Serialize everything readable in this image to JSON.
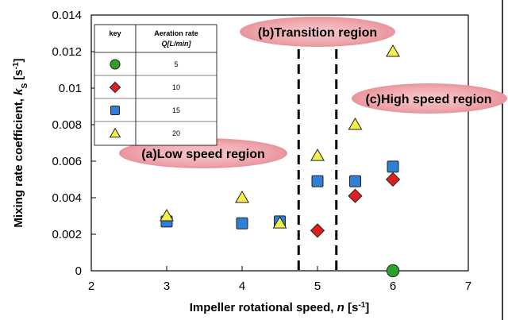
{
  "chart_data": {
    "type": "scatter",
    "xlabel": "Impeller rotational speed, n [s-1]",
    "ylabel": "Mixing rate coefficient, kS [s-1]",
    "xlim": [
      2,
      7
    ],
    "ylim": [
      0,
      0.014
    ],
    "x_ticks": [
      "2",
      "3",
      "4",
      "5",
      "6",
      "7"
    ],
    "y_ticks": [
      "0",
      "0.002",
      "0.004",
      "0.006",
      "0.008",
      "0.01",
      "0.012",
      "0.014"
    ],
    "grid": false,
    "legend": {
      "placement": "top-left",
      "header_key": "key",
      "header_title_line1": "Aeration rate",
      "header_title_line2": "Q[L/min]"
    },
    "series": [
      {
        "name": "5",
        "marker": "circle",
        "color": "#2ca02c",
        "x": [
          6
        ],
        "y": [
          0
        ]
      },
      {
        "name": "10",
        "marker": "diamond",
        "color": "#e02020",
        "x": [
          5,
          5.5,
          6
        ],
        "y": [
          0.0022,
          0.0041,
          0.005
        ]
      },
      {
        "name": "15",
        "marker": "square",
        "color": "#2f7fd6",
        "x": [
          3,
          4,
          4.5,
          5,
          5.5,
          6
        ],
        "y": [
          0.0027,
          0.0026,
          0.0027,
          0.0049,
          0.0049,
          0.0057
        ]
      },
      {
        "name": "20",
        "marker": "triangle",
        "color": "#f4f04a",
        "x": [
          3,
          4,
          4.5,
          5,
          5.5,
          6
        ],
        "y": [
          0.003,
          0.004,
          0.0026,
          0.0063,
          0.008,
          0.012
        ]
      }
    ],
    "boundaries": [
      4.75,
      5.25
    ],
    "annotations": [
      {
        "text": "(a)Low speed region"
      },
      {
        "text": "(b)Transition region"
      },
      {
        "text": "(c)High speed region"
      }
    ]
  }
}
